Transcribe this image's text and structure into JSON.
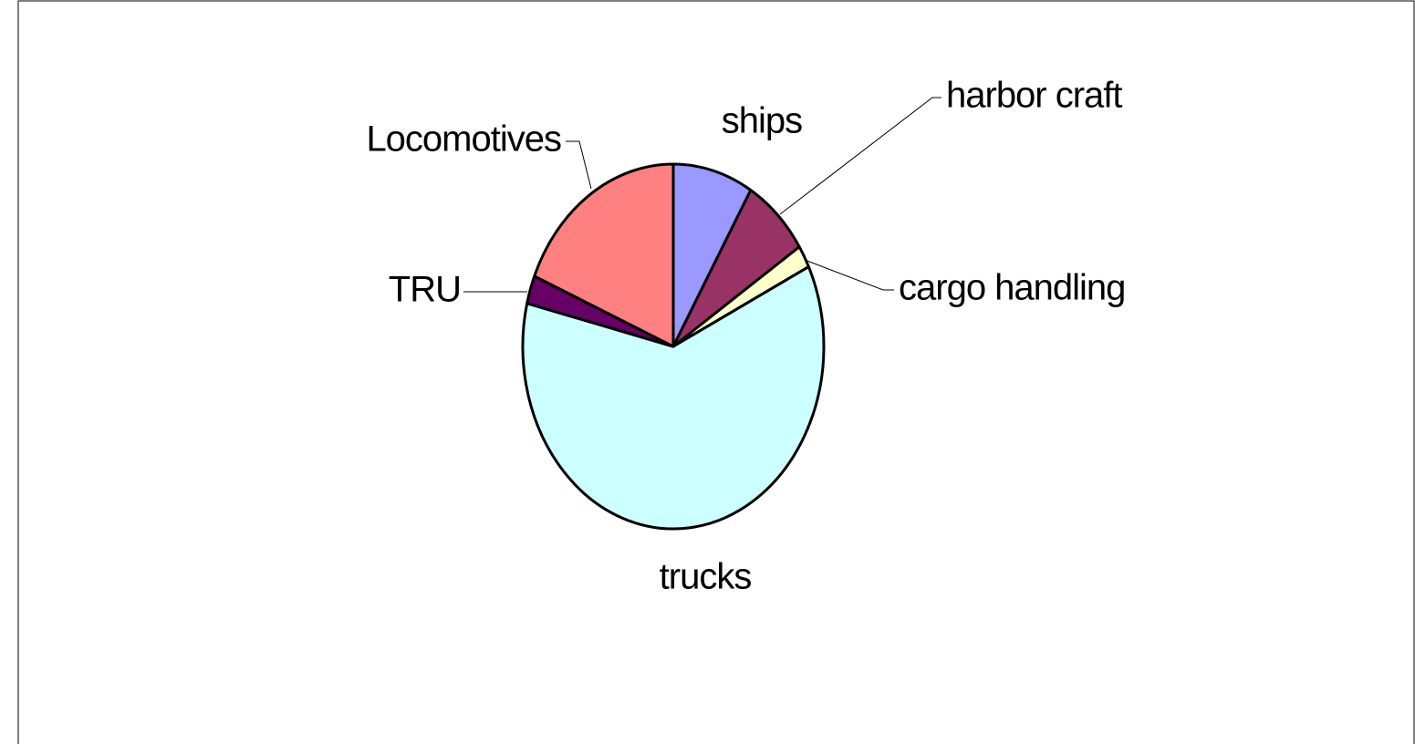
{
  "chart_data": {
    "type": "pie",
    "categories": [
      "ships",
      "harbor craft",
      "cargo handling",
      "trucks",
      "TRU",
      "Locomotives"
    ],
    "values": [
      8.6,
      7.2,
      2,
      61,
      2.5,
      18.7
    ],
    "colors": [
      "#9999ff",
      "#993366",
      "#ffffcc",
      "#ccffff",
      "#660066",
      "#ff8080"
    ]
  }
}
